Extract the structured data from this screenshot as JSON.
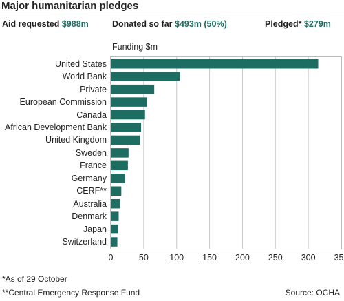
{
  "header": {
    "title": "Major humanitarian pledges",
    "stats": {
      "aid_label": "Aid requested",
      "aid_value": "$988m",
      "donated_label": "Donated so far",
      "donated_value": "$493m (50%)",
      "pledged_label": "Pledged*",
      "pledged_value": "$279m"
    }
  },
  "chart_data": {
    "type": "bar",
    "orientation": "horizontal",
    "title": "Major humanitarian pledges",
    "xlabel": "Funding $m",
    "ylabel": "",
    "xlim": [
      0,
      350
    ],
    "xticks": [
      0,
      50,
      100,
      150,
      200,
      250,
      300,
      350
    ],
    "grid": true,
    "categories": [
      "United States",
      "World Bank",
      "Private",
      "European Commission",
      "Canada",
      "African Development Bank",
      "United Kingdom",
      "Sweden",
      "France",
      "Germany",
      "CERF**",
      "Australia",
      "Denmark",
      "Japan",
      "Switzerland"
    ],
    "values": [
      315,
      105,
      66,
      55,
      52,
      46,
      44,
      27,
      26,
      22,
      16,
      14,
      12,
      11,
      10
    ],
    "bar_color": "#1d6d63"
  },
  "footer": {
    "note_asof": "*As of 29 October",
    "note_cerf": "**Central Emergency Response Fund",
    "source": "Source: OCHA"
  }
}
